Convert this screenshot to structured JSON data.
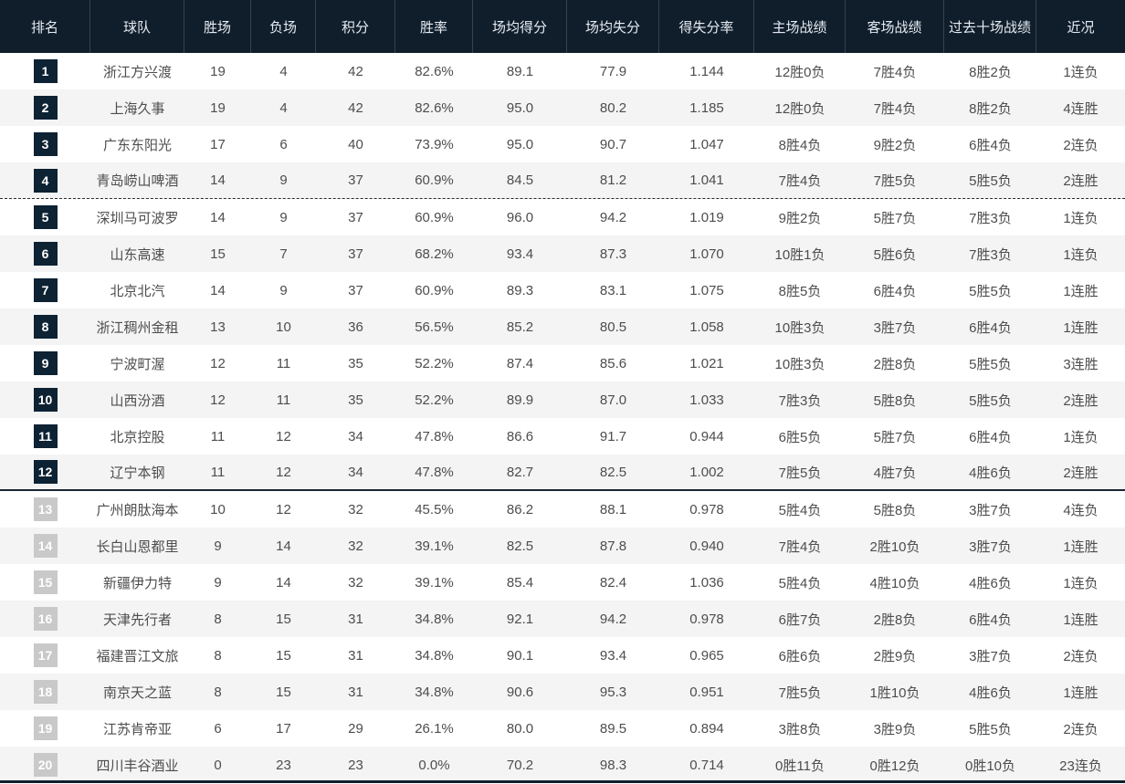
{
  "colors": {
    "header_bg": "#101e2c",
    "header_text": "#e6ecf2",
    "header_divider": "#35424f",
    "rank_badge_top": "#0d2233",
    "rank_badge_bottom": "#c9c9c9",
    "row_alt_bg": "#f4f4f5",
    "body_text": "#4d4d4d"
  },
  "separators": {
    "dashed_below_rank": 4,
    "solid_below_rank": 12
  },
  "table": {
    "columns": [
      {
        "key": "rank",
        "label": "排名"
      },
      {
        "key": "team",
        "label": "球队"
      },
      {
        "key": "wins",
        "label": "胜场"
      },
      {
        "key": "losses",
        "label": "负场"
      },
      {
        "key": "points",
        "label": "积分"
      },
      {
        "key": "win_rate",
        "label": "胜率"
      },
      {
        "key": "avg_scored",
        "label": "场均得分"
      },
      {
        "key": "avg_allowed",
        "label": "场均失分"
      },
      {
        "key": "ratio",
        "label": "得失分率"
      },
      {
        "key": "home",
        "label": "主场战绩"
      },
      {
        "key": "away",
        "label": "客场战绩"
      },
      {
        "key": "last10",
        "label": "过去十场战绩"
      },
      {
        "key": "recent",
        "label": "近况"
      }
    ],
    "rows": [
      {
        "rank": "1",
        "team": "浙江方兴渡",
        "wins": "19",
        "losses": "4",
        "points": "42",
        "win_rate": "82.6%",
        "avg_scored": "89.1",
        "avg_allowed": "77.9",
        "ratio": "1.144",
        "home": "12胜0负",
        "away": "7胜4负",
        "last10": "8胜2负",
        "recent": "1连负"
      },
      {
        "rank": "2",
        "team": "上海久事",
        "wins": "19",
        "losses": "4",
        "points": "42",
        "win_rate": "82.6%",
        "avg_scored": "95.0",
        "avg_allowed": "80.2",
        "ratio": "1.185",
        "home": "12胜0负",
        "away": "7胜4负",
        "last10": "8胜2负",
        "recent": "4连胜"
      },
      {
        "rank": "3",
        "team": "广东东阳光",
        "wins": "17",
        "losses": "6",
        "points": "40",
        "win_rate": "73.9%",
        "avg_scored": "95.0",
        "avg_allowed": "90.7",
        "ratio": "1.047",
        "home": "8胜4负",
        "away": "9胜2负",
        "last10": "6胜4负",
        "recent": "2连负"
      },
      {
        "rank": "4",
        "team": "青岛崂山啤酒",
        "wins": "14",
        "losses": "9",
        "points": "37",
        "win_rate": "60.9%",
        "avg_scored": "84.5",
        "avg_allowed": "81.2",
        "ratio": "1.041",
        "home": "7胜4负",
        "away": "7胜5负",
        "last10": "5胜5负",
        "recent": "2连胜"
      },
      {
        "rank": "5",
        "team": "深圳马可波罗",
        "wins": "14",
        "losses": "9",
        "points": "37",
        "win_rate": "60.9%",
        "avg_scored": "96.0",
        "avg_allowed": "94.2",
        "ratio": "1.019",
        "home": "9胜2负",
        "away": "5胜7负",
        "last10": "7胜3负",
        "recent": "1连负"
      },
      {
        "rank": "6",
        "team": "山东高速",
        "wins": "15",
        "losses": "7",
        "points": "37",
        "win_rate": "68.2%",
        "avg_scored": "93.4",
        "avg_allowed": "87.3",
        "ratio": "1.070",
        "home": "10胜1负",
        "away": "5胜6负",
        "last10": "7胜3负",
        "recent": "1连负"
      },
      {
        "rank": "7",
        "team": "北京北汽",
        "wins": "14",
        "losses": "9",
        "points": "37",
        "win_rate": "60.9%",
        "avg_scored": "89.3",
        "avg_allowed": "83.1",
        "ratio": "1.075",
        "home": "8胜5负",
        "away": "6胜4负",
        "last10": "5胜5负",
        "recent": "1连胜"
      },
      {
        "rank": "8",
        "team": "浙江稠州金租",
        "wins": "13",
        "losses": "10",
        "points": "36",
        "win_rate": "56.5%",
        "avg_scored": "85.2",
        "avg_allowed": "80.5",
        "ratio": "1.058",
        "home": "10胜3负",
        "away": "3胜7负",
        "last10": "6胜4负",
        "recent": "1连胜"
      },
      {
        "rank": "9",
        "team": "宁波町渥",
        "wins": "12",
        "losses": "11",
        "points": "35",
        "win_rate": "52.2%",
        "avg_scored": "87.4",
        "avg_allowed": "85.6",
        "ratio": "1.021",
        "home": "10胜3负",
        "away": "2胜8负",
        "last10": "5胜5负",
        "recent": "3连胜"
      },
      {
        "rank": "10",
        "team": "山西汾酒",
        "wins": "12",
        "losses": "11",
        "points": "35",
        "win_rate": "52.2%",
        "avg_scored": "89.9",
        "avg_allowed": "87.0",
        "ratio": "1.033",
        "home": "7胜3负",
        "away": "5胜8负",
        "last10": "5胜5负",
        "recent": "2连胜"
      },
      {
        "rank": "11",
        "team": "北京控股",
        "wins": "11",
        "losses": "12",
        "points": "34",
        "win_rate": "47.8%",
        "avg_scored": "86.6",
        "avg_allowed": "91.7",
        "ratio": "0.944",
        "home": "6胜5负",
        "away": "5胜7负",
        "last10": "6胜4负",
        "recent": "1连负"
      },
      {
        "rank": "12",
        "team": "辽宁本钢",
        "wins": "11",
        "losses": "12",
        "points": "34",
        "win_rate": "47.8%",
        "avg_scored": "82.7",
        "avg_allowed": "82.5",
        "ratio": "1.002",
        "home": "7胜5负",
        "away": "4胜7负",
        "last10": "4胜6负",
        "recent": "2连胜"
      },
      {
        "rank": "13",
        "team": "广州朗肽海本",
        "wins": "10",
        "losses": "12",
        "points": "32",
        "win_rate": "45.5%",
        "avg_scored": "86.2",
        "avg_allowed": "88.1",
        "ratio": "0.978",
        "home": "5胜4负",
        "away": "5胜8负",
        "last10": "3胜7负",
        "recent": "4连负"
      },
      {
        "rank": "14",
        "team": "长白山恩都里",
        "wins": "9",
        "losses": "14",
        "points": "32",
        "win_rate": "39.1%",
        "avg_scored": "82.5",
        "avg_allowed": "87.8",
        "ratio": "0.940",
        "home": "7胜4负",
        "away": "2胜10负",
        "last10": "3胜7负",
        "recent": "1连胜"
      },
      {
        "rank": "15",
        "team": "新疆伊力特",
        "wins": "9",
        "losses": "14",
        "points": "32",
        "win_rate": "39.1%",
        "avg_scored": "85.4",
        "avg_allowed": "82.4",
        "ratio": "1.036",
        "home": "5胜4负",
        "away": "4胜10负",
        "last10": "4胜6负",
        "recent": "1连负"
      },
      {
        "rank": "16",
        "team": "天津先行者",
        "wins": "8",
        "losses": "15",
        "points": "31",
        "win_rate": "34.8%",
        "avg_scored": "92.1",
        "avg_allowed": "94.2",
        "ratio": "0.978",
        "home": "6胜7负",
        "away": "2胜8负",
        "last10": "6胜4负",
        "recent": "1连胜"
      },
      {
        "rank": "17",
        "team": "福建晋江文旅",
        "wins": "8",
        "losses": "15",
        "points": "31",
        "win_rate": "34.8%",
        "avg_scored": "90.1",
        "avg_allowed": "93.4",
        "ratio": "0.965",
        "home": "6胜6负",
        "away": "2胜9负",
        "last10": "3胜7负",
        "recent": "2连负"
      },
      {
        "rank": "18",
        "team": "南京天之蓝",
        "wins": "8",
        "losses": "15",
        "points": "31",
        "win_rate": "34.8%",
        "avg_scored": "90.6",
        "avg_allowed": "95.3",
        "ratio": "0.951",
        "home": "7胜5负",
        "away": "1胜10负",
        "last10": "4胜6负",
        "recent": "1连胜"
      },
      {
        "rank": "19",
        "team": "江苏肯帝亚",
        "wins": "6",
        "losses": "17",
        "points": "29",
        "win_rate": "26.1%",
        "avg_scored": "80.0",
        "avg_allowed": "89.5",
        "ratio": "0.894",
        "home": "3胜8负",
        "away": "3胜9负",
        "last10": "5胜5负",
        "recent": "2连负"
      },
      {
        "rank": "20",
        "team": "四川丰谷酒业",
        "wins": "0",
        "losses": "23",
        "points": "23",
        "win_rate": "0.0%",
        "avg_scored": "70.2",
        "avg_allowed": "98.3",
        "ratio": "0.714",
        "home": "0胜11负",
        "away": "0胜12负",
        "last10": "0胜10负",
        "recent": "23连负"
      }
    ]
  }
}
